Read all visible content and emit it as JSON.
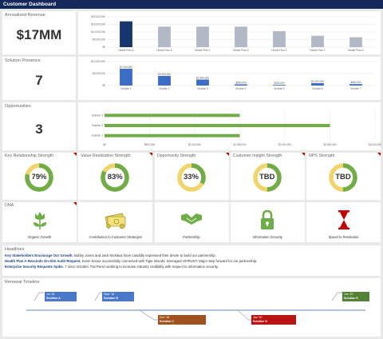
{
  "header": {
    "title": "Customer Dashboard"
  },
  "colors": {
    "navy": "#14285c",
    "bar_dark": "#17356e",
    "bar_light": "#b2b8c5",
    "bar_blue": "#3b6dc7",
    "bar_green": "#70ad47",
    "ring_yellow": "#f1d46b",
    "ring_green": "#70ad47",
    "flag_red": "#c00000",
    "icon_green": "#70ad47",
    "icon_red": "#c00000"
  },
  "annualized_revenue": {
    "label": "Annualized Revenue",
    "value": "$17MM"
  },
  "solution_presence": {
    "label": "Solution Presence",
    "value": "7"
  },
  "opportunities": {
    "label": "Opportunities",
    "value": "3"
  },
  "chart_data": [
    {
      "type": "bar",
      "categories": [
        "Health Plan A",
        "Health Plan B",
        "Health Plan C",
        "Health Plan D",
        "Health Plan E",
        "Health Plan F",
        "Health Plan G"
      ],
      "values": [
        17000000,
        13500000,
        13500000,
        13500000,
        10500000,
        7500000,
        6500000
      ],
      "ylim": [
        0,
        20000000
      ],
      "yticks": [
        "$0",
        "$5,000,000",
        "$10,000,000",
        "$15,000,000",
        "$20,000,000"
      ],
      "grid": true,
      "highlight_index": 0
    },
    {
      "type": "bar",
      "categories": [
        "Module 1",
        "Module 2",
        "Module 3",
        "Module 4",
        "Module 5",
        "Module 6",
        "Module 7"
      ],
      "values": [
        7000000,
        4000000,
        2500000,
        500000,
        300000,
        1000000,
        600000
      ],
      "data_labels": [
        "$7,000,000",
        "$4,000,000",
        "$2,500,000",
        "$500,000",
        "$300,000",
        "$1,000,000",
        "$600,000"
      ],
      "ylim": [
        0,
        10000000
      ],
      "yticks": [
        "$0",
        "$5,000,000",
        "$10,000,000"
      ],
      "grid": true
    },
    {
      "type": "bar",
      "orientation": "horizontal",
      "categories": [
        "Solution 3",
        "Solution 2",
        "Solution 1"
      ],
      "values": [
        1500000,
        2500000,
        1500000
      ],
      "xlim": [
        0,
        3000000
      ],
      "xticks": [
        "$0",
        "$500,000",
        "$1,000,000",
        "$1,500,000",
        "$2,000,000",
        "$2,500,000",
        "$3,000,000"
      ],
      "grid": true
    }
  ],
  "gauges": [
    {
      "label": "Key Relationship Strength",
      "value": "79%",
      "fraction": 0.79,
      "flag": true
    },
    {
      "label": "Value Realization Strength",
      "value": "83%",
      "fraction": 0.83,
      "flag": true
    },
    {
      "label": "Opportunity Strength",
      "value": "33%",
      "fraction": 0.33,
      "flag": true
    },
    {
      "label": "Customer Insight Strength",
      "value": "TBD",
      "fraction": 0.5,
      "flag": true
    },
    {
      "label": "NPS Strength",
      "value": "TBD",
      "fraction": 0.5,
      "flag": true
    }
  ],
  "dna": {
    "label": "DNA",
    "items": [
      {
        "label": "Organic Growth",
        "icon": "flower-icon",
        "flag": true
      },
      {
        "label": "Contribution to Customer Strategies",
        "icon": "money-icon",
        "flag": false
      },
      {
        "label": "Partnership",
        "icon": "handshake-icon",
        "flag": false
      },
      {
        "label": "Information Security",
        "icon": "padlock-icon",
        "flag": false
      },
      {
        "label": "Speed to Resolution",
        "icon": "hourglass-icon",
        "flag": false
      }
    ]
  },
  "headlines": {
    "label": "Headlines",
    "items": [
      {
        "title": "Key Stakeholders Encourage Our Growth.",
        "body": "Bobby Jones and Jack Nicklaus have candidly expressed their desire to build our partnership."
      },
      {
        "title": "Health Plan A Rescinds On-Site Audit Request.",
        "body": "Kevin Kisner successfully connected with Tiger Woods; leveraged HITRUST.  Major step forward for our partnership."
      },
      {
        "title": "Enterprise Security Requests Spike.",
        "body": "7 since October.  Pat Perez working to increase industry credibility with respect to information security."
      }
    ]
  },
  "renewal": {
    "label": "Renewal Timeline",
    "items": [
      {
        "date": "Jul '18",
        "name": "Solution A",
        "color": "#4a78c9"
      },
      {
        "date": "Sept '18",
        "name": "Solution B",
        "color": "#4a78c9"
      },
      {
        "date": "Dec '18",
        "name": "Solution C",
        "color": "#a0521e"
      },
      {
        "date": "Jan '20",
        "name": "Solution D",
        "color": "#b81414"
      },
      {
        "date": "Jun '22",
        "name": "Solution E",
        "color": "#548235"
      }
    ]
  }
}
